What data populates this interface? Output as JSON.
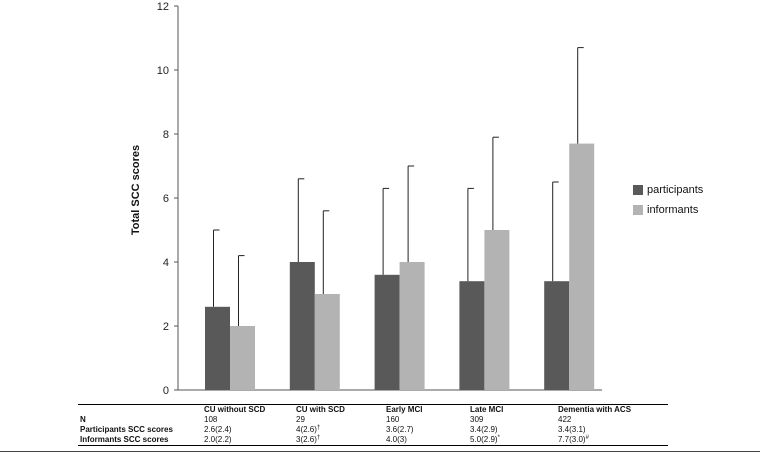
{
  "chart_data": {
    "type": "bar",
    "title": "",
    "xlabel": "",
    "ylabel": "Total SCC scores",
    "ylim": [
      0,
      12
    ],
    "yticks": [
      0,
      2,
      4,
      6,
      8,
      10,
      12
    ],
    "grid": false,
    "legend_position": "right",
    "categories": [
      "CU without SCD",
      "CU with SCD",
      "Early MCI",
      "Late MCI",
      "Dementia with ACS"
    ],
    "series": [
      {
        "name": "participants",
        "color": "#595959",
        "values": [
          2.6,
          4.0,
          3.6,
          3.4,
          3.4
        ],
        "errors": [
          2.4,
          2.6,
          2.7,
          2.9,
          3.1
        ]
      },
      {
        "name": "informants",
        "color": "#b3b3b3",
        "values": [
          2.0,
          3.0,
          4.0,
          5.0,
          7.7
        ],
        "errors": [
          2.2,
          2.6,
          3.0,
          2.9,
          3.0
        ]
      }
    ]
  },
  "table": {
    "rows": [
      {
        "label": "N",
        "cells": [
          "108",
          "29",
          "160",
          "309",
          "422"
        ],
        "marks": [
          "",
          "",
          "",
          "",
          ""
        ]
      },
      {
        "label": "Participants SCC scores",
        "cells": [
          "2.6(2.4)",
          "4(2.6)",
          "3.6(2.7)",
          "3.4(2.9)",
          "3.4(3.1)"
        ],
        "marks": [
          "",
          "†",
          "",
          "",
          ""
        ]
      },
      {
        "label": "Informants SCC scores",
        "cells": [
          "2.0(2.2)",
          "3(2.6)",
          "4.0(3)",
          "5.0(2.9)",
          "7.7(3.0)"
        ],
        "marks": [
          "",
          "†",
          "",
          "*",
          "#"
        ]
      }
    ]
  }
}
